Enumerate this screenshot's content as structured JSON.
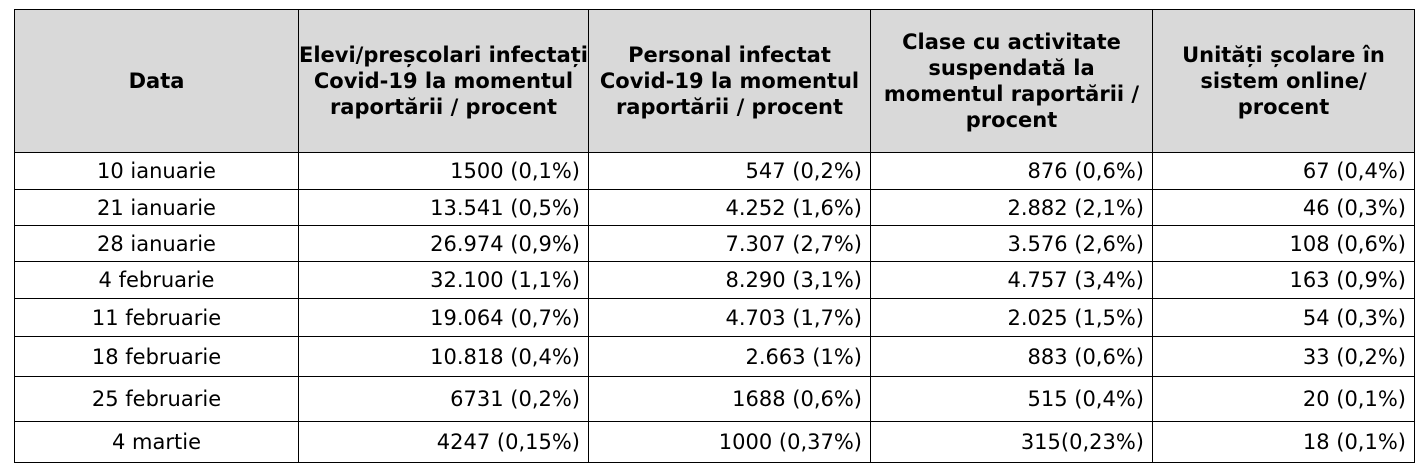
{
  "table": {
    "headers": [
      "Data",
      "Elevi/preșcolari infectați Covid-19 la momentul raportării / procent",
      "Personal infectat Covid-19 la momentul raportării / procent",
      "Clase cu activitate suspendată la momentul raportării / procent",
      "Unități școlare în sistem online/ procent"
    ],
    "rows": [
      [
        "10 ianuarie",
        "1500 (0,1%)",
        "547 (0,2%)",
        "876 (0,6%)",
        "67 (0,4%)"
      ],
      [
        "21 ianuarie",
        "13.541 (0,5%)",
        "4.252 (1,6%)",
        "2.882 (2,1%)",
        "46 (0,3%)"
      ],
      [
        "28 ianuarie",
        "26.974 (0,9%)",
        "7.307 (2,7%)",
        "3.576 (2,6%)",
        "108 (0,6%)"
      ],
      [
        "4 februarie",
        "32.100 (1,1%)",
        "8.290 (3,1%)",
        "4.757 (3,4%)",
        "163 (0,9%)"
      ],
      [
        "11 februarie",
        "19.064 (0,7%)",
        "4.703 (1,7%)",
        "2.025 (1,5%)",
        "54 (0,3%)"
      ],
      [
        "18 februarie",
        "10.818 (0,4%)",
        "2.663 (1%)",
        "883 (0,6%)",
        "33 (0,2%)"
      ],
      [
        "25 februarie",
        "6731 (0,2%)",
        "1688 (0,6%)",
        "515 (0,4%)",
        "20 (0,1%)"
      ],
      [
        "4 martie",
        "4247 (0,15%)",
        "1000 (0,37%)",
        "315(0,23%)",
        "18 (0,1%)"
      ]
    ]
  },
  "colors": {
    "header_background": "#d9d9d9",
    "border": "#000000",
    "text": "#000000"
  }
}
